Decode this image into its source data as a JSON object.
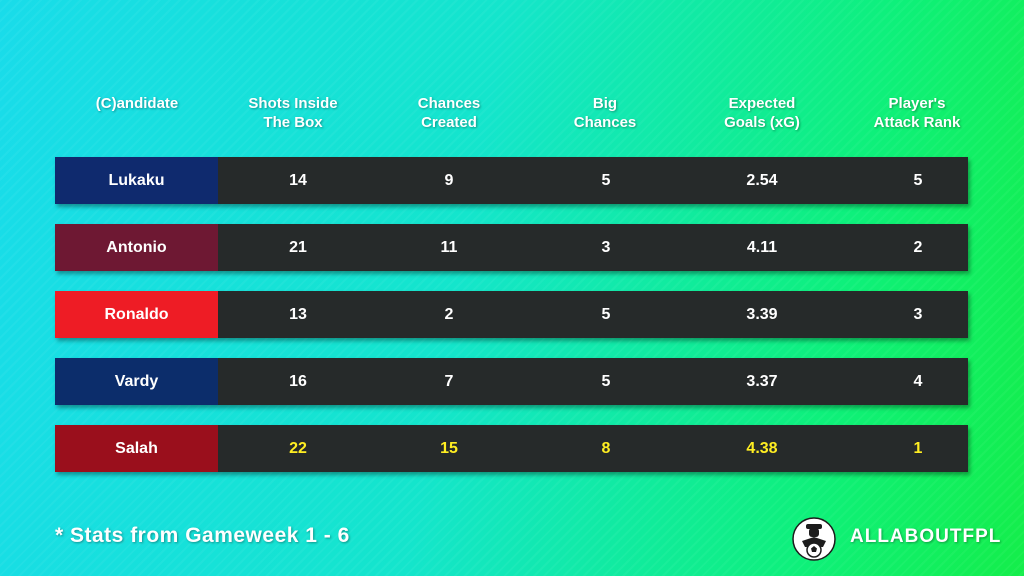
{
  "headers": [
    "(C)andidate",
    "Shots Inside\nThe Box",
    "Chances\nCreated",
    "Big\nChances",
    "Expected\nGoals (xG)",
    "Player's\nAttack Rank"
  ],
  "rows": [
    {
      "name": "Lukaku",
      "color": "#0f2a6e",
      "values": [
        "14",
        "9",
        "5",
        "2.54",
        "5"
      ],
      "highlight": false
    },
    {
      "name": "Antonio",
      "color": "#6e1833",
      "values": [
        "21",
        "11",
        "3",
        "4.11",
        "2"
      ],
      "highlight": false
    },
    {
      "name": "Ronaldo",
      "color": "#ee1c25",
      "values": [
        "13",
        "2",
        "5",
        "3.39",
        "3"
      ],
      "highlight": false
    },
    {
      "name": "Vardy",
      "color": "#0c2d6b",
      "values": [
        "16",
        "7",
        "5",
        "3.37",
        "4"
      ],
      "highlight": false
    },
    {
      "name": "Salah",
      "color": "#9a0f1c",
      "values": [
        "22",
        "15",
        "8",
        "4.38",
        "1"
      ],
      "highlight": true
    }
  ],
  "highlight_color": "#ffee22",
  "footnote": "* Stats from Gameweek 1 - 6",
  "brand": "ALLABOUTFPL",
  "logo_icon": "football-player-logo"
}
